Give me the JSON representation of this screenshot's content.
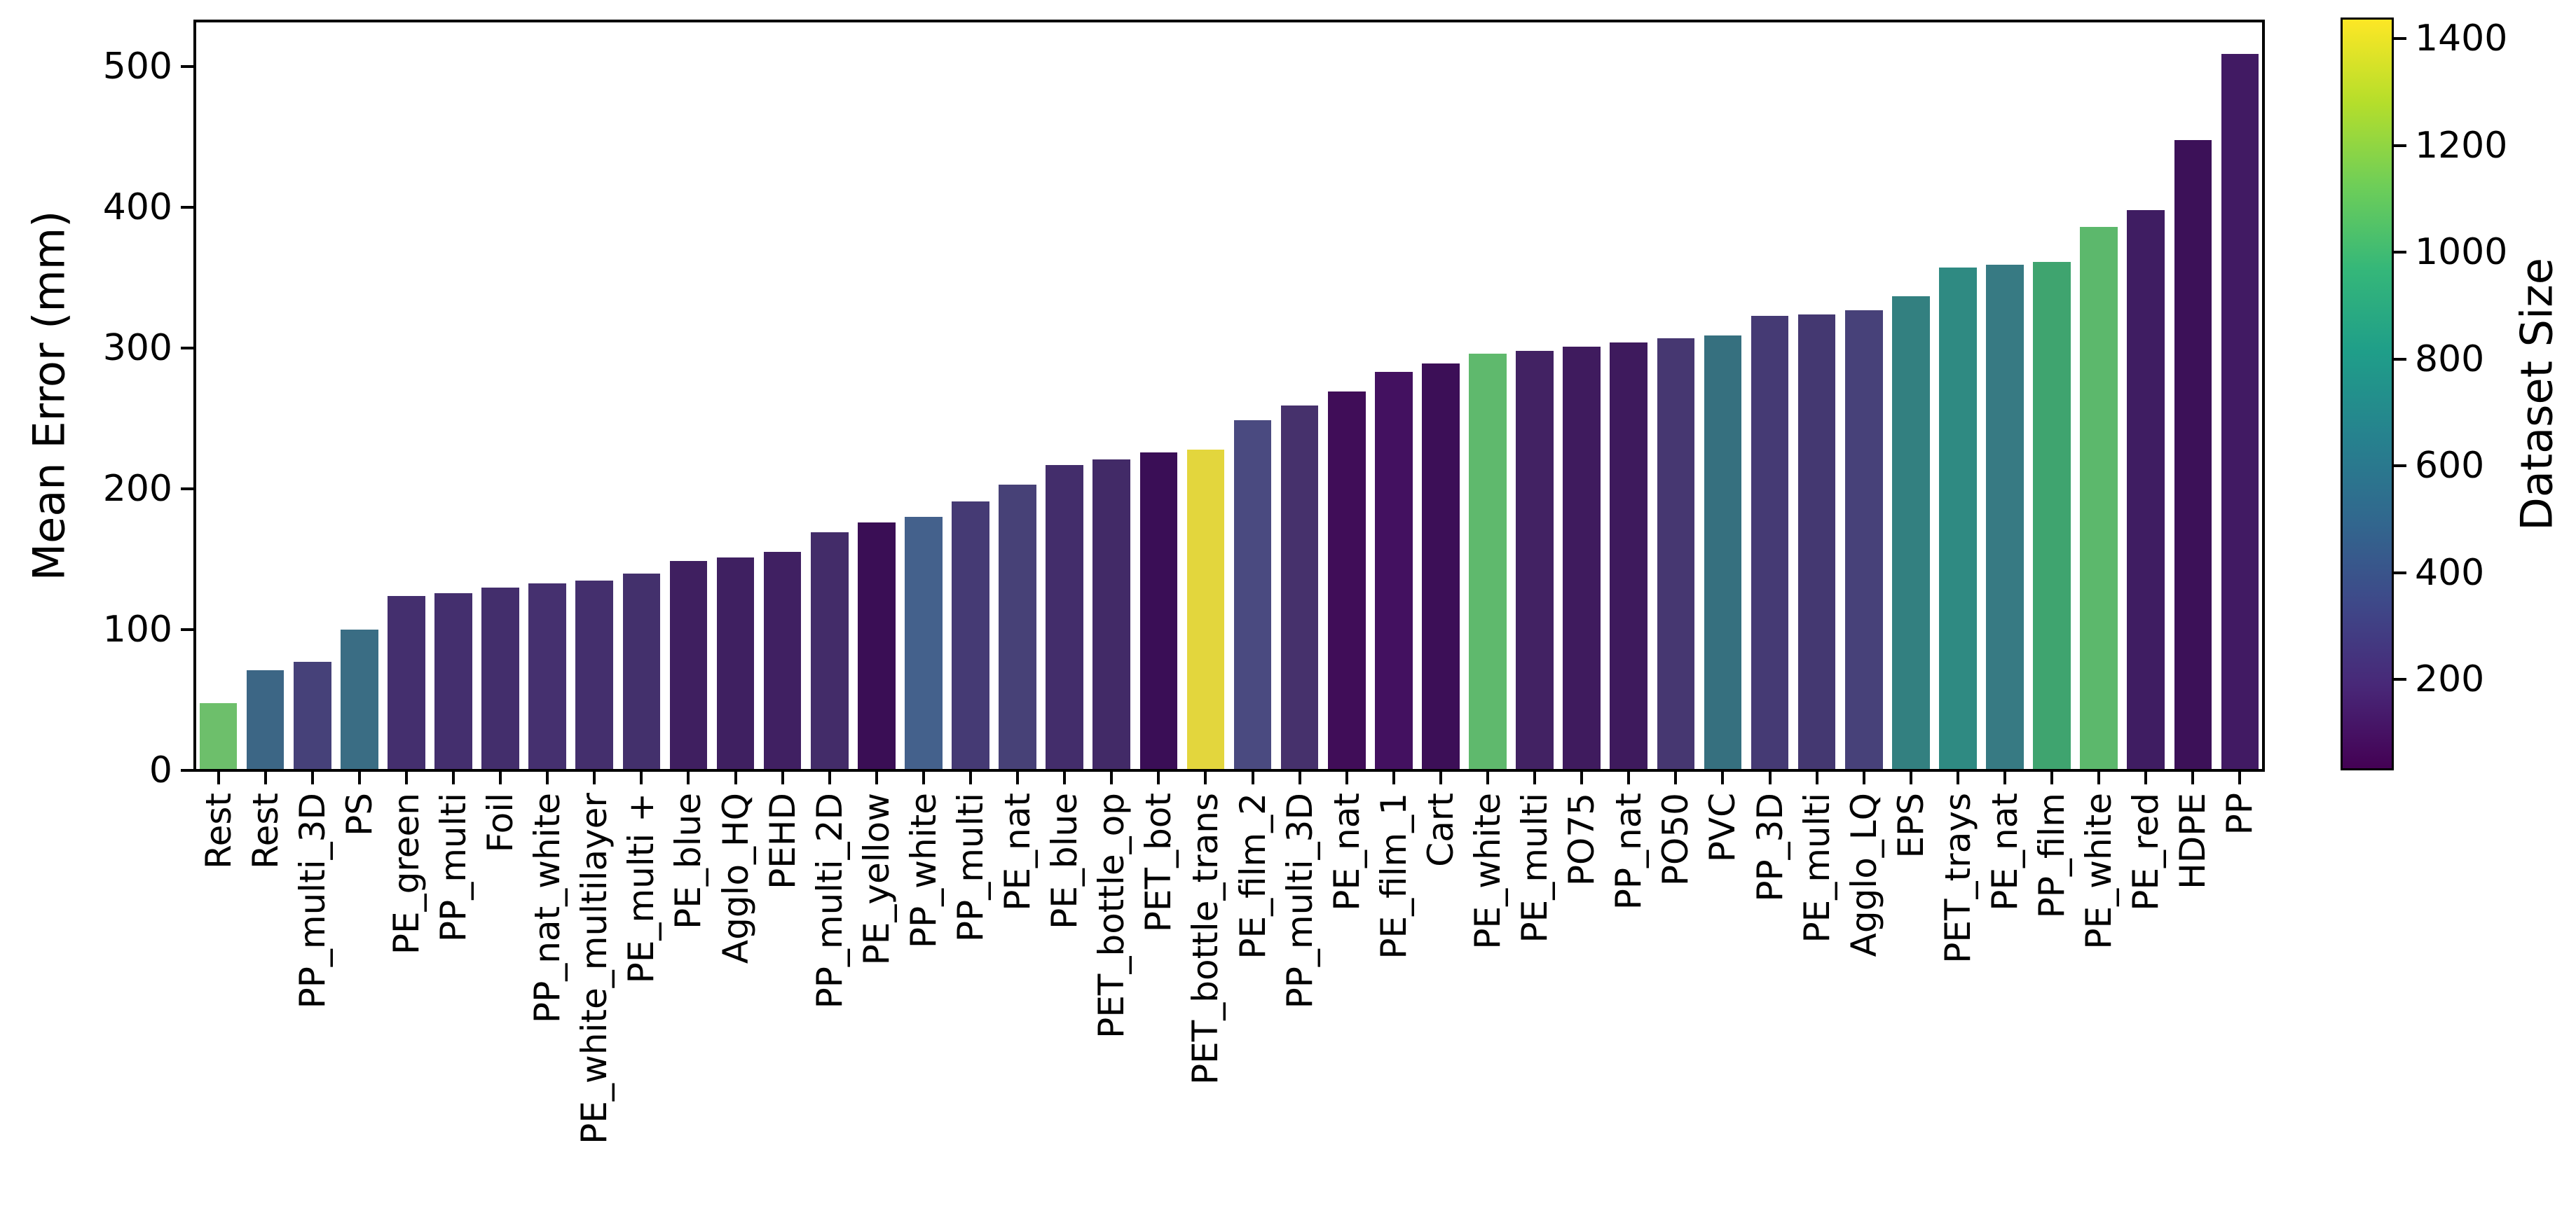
{
  "chart_data": {
    "type": "bar",
    "title": "",
    "xlabel": "",
    "ylabel": "Mean Error (mm)",
    "ylim": [
      0,
      530
    ],
    "yticks": [
      0,
      100,
      200,
      300,
      400,
      500
    ],
    "grid": false,
    "legend_position": "none",
    "background_color": "#ffffff",
    "spine_color": "#000000",
    "categories": [
      "Rest",
      "Rest",
      "PP_multi_3D",
      "PS",
      "PE_green",
      "PP_multi",
      "Foil",
      "PP_nat_white",
      "PE_white_multilayer",
      "PE_multi +",
      "PE_blue",
      "Agglo_HQ",
      "PEHD",
      "PP_multi_2D",
      "PE_yellow",
      "PP_white",
      "PP_multi",
      "PE_nat",
      "PE_blue",
      "PET_bottle_op",
      "PET_bot",
      "PET_bottle_trans",
      "PE_film_2",
      "PP_multi_3D",
      "PE_nat",
      "PE_film_1",
      "Cart",
      "PE_white",
      "PE_multi",
      "PO75",
      "PP_nat",
      "PO50",
      "PVC",
      "PP_3D",
      "PE_multi",
      "Agglo_LQ",
      "EPS",
      "PET_trays",
      "PE_nat",
      "PP_film",
      "PE_white",
      "PE_red",
      "HDPE",
      "PP"
    ],
    "values": [
      48,
      71,
      77,
      100,
      124,
      126,
      130,
      133,
      135,
      140,
      149,
      151,
      155,
      169,
      176,
      180,
      191,
      203,
      217,
      221,
      226,
      228,
      249,
      259,
      269,
      283,
      289,
      296,
      298,
      301,
      304,
      307,
      309,
      323,
      324,
      327,
      337,
      357,
      359,
      361,
      386,
      398,
      448,
      509
    ],
    "bar_colors": [
      "#6dbf6b",
      "#3c6685",
      "#464179",
      "#3a6d84",
      "#442f6e",
      "#442f6e",
      "#432e6c",
      "#45306f",
      "#442f6d",
      "#43306c",
      "#3f1f60",
      "#3f2061",
      "#402062",
      "#432c69",
      "#3a0e55",
      "#44618c",
      "#453a74",
      "#474177",
      "#432d6b",
      "#422a67",
      "#3a0e56",
      "#e3d63d",
      "#4a4a80",
      "#46316c",
      "#400d58",
      "#431160",
      "#3c0f57",
      "#5fb96d",
      "#422263",
      "#3f1b5e",
      "#3e1a5d",
      "#463771",
      "#36707f",
      "#453a74",
      "#443871",
      "#474179",
      "#338080",
      "#2f8a82",
      "#377a83",
      "#3fa46f",
      "#5cb86c",
      "#3f1d62",
      "#3c1158",
      "#411a63"
    ],
    "dataset_sizes": [
      1020,
      450,
      270,
      500,
      200,
      200,
      195,
      205,
      200,
      200,
      130,
      130,
      135,
      185,
      55,
      455,
      255,
      270,
      195,
      180,
      55,
      1440,
      325,
      205,
      70,
      100,
      60,
      965,
      155,
      140,
      140,
      230,
      525,
      255,
      245,
      270,
      620,
      680,
      595,
      835,
      955,
      145,
      75,
      150
    ],
    "colorbar": {
      "label": "Dataset Size",
      "ticks": [
        200,
        400,
        600,
        800,
        1000,
        1200,
        1400
      ],
      "vmin": 30,
      "vmax": 1440,
      "colormap": "viridis",
      "gradient": [
        "#440154",
        "#482878",
        "#3e4989",
        "#31688e",
        "#26828e",
        "#1f9e89",
        "#35b779",
        "#6ece58",
        "#b5de2b",
        "#fde725"
      ]
    }
  }
}
